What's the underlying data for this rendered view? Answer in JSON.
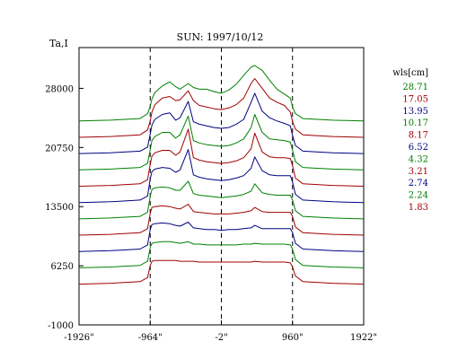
{
  "chart_data": {
    "type": "line",
    "title": "SUN: 1997/10/12",
    "ylabel": "Ta,I",
    "xlabel": "",
    "legend_title": "wls[cm]",
    "legend_placement": "right",
    "grid": false,
    "xlim": [
      -1926,
      1922
    ],
    "ylim": [
      -1000,
      33000
    ],
    "x_ticks": [
      -1926,
      -964,
      -2,
      960,
      1922
    ],
    "x_tick_labels": [
      "-1926\"",
      "-964\"",
      "-2\"",
      "960\"",
      "1922\""
    ],
    "y_ticks": [
      -1000,
      6250,
      13500,
      20750,
      28000
    ],
    "y_tick_labels": [
      "-1000",
      "6250",
      "13500",
      "20750",
      "28000"
    ],
    "reference_lines_x": [
      -964,
      -2,
      960
    ],
    "x": [
      -1926,
      -1500,
      -1100,
      -1000,
      -964,
      -940,
      -900,
      -800,
      -700,
      -620,
      -560,
      -450,
      -380,
      -300,
      -200,
      -100,
      -2,
      100,
      200,
      300,
      400,
      450,
      550,
      650,
      750,
      850,
      930,
      960,
      1000,
      1100,
      1500,
      1922
    ],
    "series": [
      {
        "name": "28.71",
        "color": "#008000",
        "values": [
          24000,
          24100,
          24300,
          24900,
          25800,
          26700,
          27500,
          28300,
          28800,
          28200,
          27900,
          28600,
          28100,
          27900,
          27900,
          27600,
          27400,
          27800,
          28500,
          29600,
          30600,
          30800,
          30200,
          29000,
          27900,
          27300,
          26800,
          25700,
          24900,
          24300,
          24100,
          24000
        ]
      },
      {
        "name": "17.05",
        "color": "#a00000",
        "values": [
          22000,
          22100,
          22300,
          22900,
          24000,
          25100,
          26000,
          26800,
          27000,
          26500,
          26600,
          27700,
          26500,
          25900,
          25700,
          25500,
          25400,
          25600,
          26000,
          26800,
          28600,
          29200,
          28000,
          26800,
          26300,
          25900,
          25100,
          23900,
          23000,
          22300,
          22100,
          22000
        ]
      },
      {
        "name": "13.95",
        "color": "#000080",
        "values": [
          20000,
          20100,
          20300,
          20800,
          22400,
          23500,
          24200,
          24800,
          25000,
          24100,
          24400,
          26400,
          23900,
          23600,
          23400,
          23200,
          23100,
          23200,
          23600,
          24200,
          26300,
          27400,
          25200,
          24400,
          24000,
          23700,
          23400,
          22200,
          21000,
          20300,
          20100,
          20000
        ]
      },
      {
        "name": "10.17",
        "color": "#008000",
        "values": [
          18000,
          18100,
          18300,
          18800,
          20500,
          21600,
          22100,
          22600,
          22600,
          21900,
          22300,
          24600,
          21600,
          21300,
          21100,
          21000,
          20900,
          21000,
          21300,
          21800,
          23200,
          24800,
          22600,
          21800,
          21700,
          21600,
          21400,
          20400,
          19000,
          18300,
          18100,
          18000
        ]
      },
      {
        "name": "8.17",
        "color": "#a00000",
        "values": [
          16000,
          16100,
          16300,
          16800,
          18700,
          19700,
          20100,
          20400,
          20400,
          19800,
          20200,
          23000,
          19500,
          19200,
          19000,
          18900,
          18800,
          18900,
          19100,
          19500,
          20600,
          22500,
          20200,
          19600,
          19500,
          19500,
          19400,
          18500,
          17000,
          16300,
          16100,
          16000
        ]
      },
      {
        "name": "6.52",
        "color": "#000080",
        "values": [
          14000,
          14100,
          14300,
          14800,
          16900,
          17800,
          18100,
          18300,
          18200,
          17700,
          18000,
          20500,
          17400,
          17100,
          16900,
          16800,
          16700,
          16800,
          17000,
          17300,
          18200,
          19600,
          17900,
          17400,
          17300,
          17300,
          17300,
          16500,
          15000,
          14300,
          14100,
          14000
        ]
      },
      {
        "name": "4.32",
        "color": "#008000",
        "values": [
          12000,
          12100,
          12300,
          12800,
          14800,
          15600,
          15800,
          15900,
          15800,
          15500,
          15500,
          16600,
          15100,
          14900,
          14800,
          14700,
          14600,
          14700,
          14800,
          15000,
          15400,
          16300,
          15200,
          15000,
          14900,
          14900,
          14900,
          14300,
          13000,
          12300,
          12100,
          12000
        ]
      },
      {
        "name": "3.21",
        "color": "#a00000",
        "values": [
          10000,
          10100,
          10300,
          10800,
          12700,
          13400,
          13500,
          13600,
          13500,
          13300,
          13200,
          13800,
          12900,
          12800,
          12700,
          12600,
          12600,
          12600,
          12700,
          12800,
          13000,
          13400,
          12900,
          12800,
          12800,
          12800,
          12800,
          12300,
          11000,
          10300,
          10100,
          10000
        ]
      },
      {
        "name": "2.74",
        "color": "#000080",
        "values": [
          8000,
          8100,
          8300,
          8800,
          10700,
          11300,
          11400,
          11500,
          11400,
          11200,
          11100,
          11600,
          10900,
          10800,
          10700,
          10700,
          10600,
          10700,
          10700,
          10800,
          10900,
          11200,
          10800,
          10800,
          10800,
          10800,
          10800,
          10300,
          9000,
          8300,
          8100,
          8000
        ]
      },
      {
        "name": "2.24",
        "color": "#008000",
        "values": [
          6000,
          6100,
          6300,
          6800,
          8500,
          9000,
          9100,
          9200,
          9200,
          9100,
          9000,
          9200,
          8900,
          8900,
          8800,
          8800,
          8800,
          8800,
          8800,
          8900,
          8900,
          9000,
          8900,
          8900,
          8900,
          8900,
          8800,
          8300,
          7000,
          6300,
          6100,
          6000
        ]
      },
      {
        "name": "1.83",
        "color": "#a00000",
        "values": [
          4000,
          4100,
          4300,
          4800,
          6300,
          6800,
          6900,
          6900,
          6900,
          6900,
          6800,
          6800,
          6800,
          6700,
          6700,
          6700,
          6700,
          6700,
          6700,
          6700,
          6700,
          6800,
          6700,
          6700,
          6700,
          6700,
          6600,
          6100,
          5000,
          4300,
          4100,
          4000
        ]
      }
    ]
  }
}
